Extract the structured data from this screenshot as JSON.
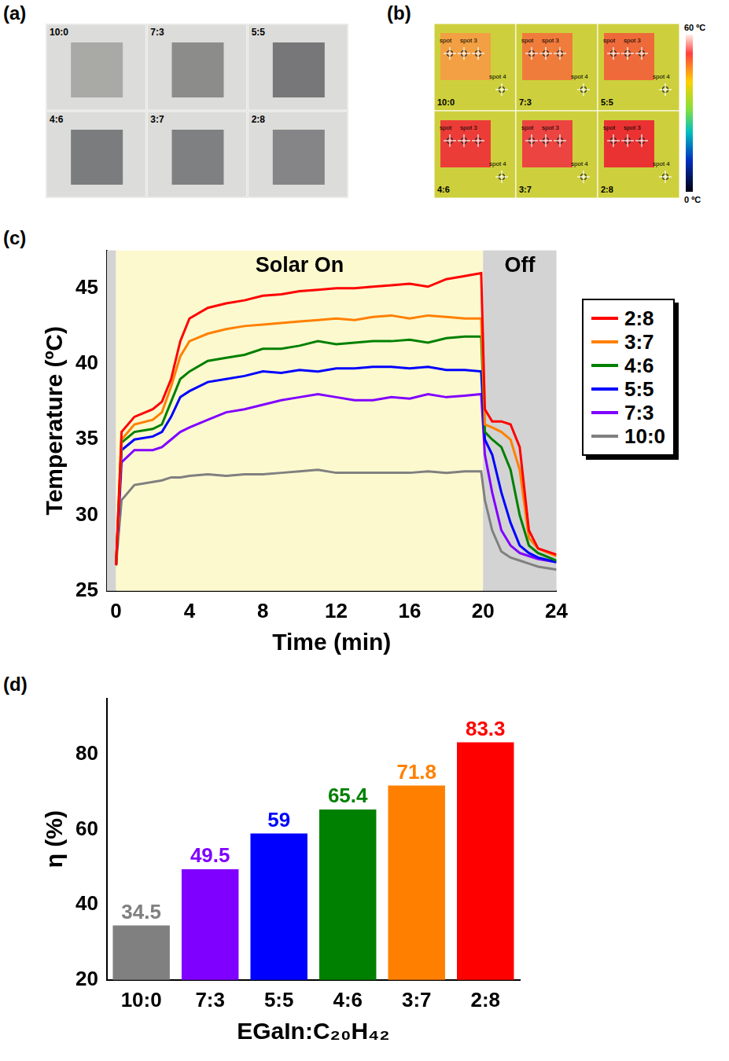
{
  "photo_panel": {
    "letter": "(a)",
    "samples": [
      "10:0",
      "7:3",
      "5:5",
      "4:6",
      "3:7",
      "2:8"
    ],
    "colors": [
      "#a9a9a5",
      "#8c8c8a",
      "#777779",
      "#7b7c7e",
      "#7f8082",
      "#858587"
    ]
  },
  "thermal_panel": {
    "letter": "(b)",
    "samples": [
      "10:0",
      "7:3",
      "5:5",
      "4:6",
      "3:7",
      "2:8"
    ],
    "colors": [
      "#f2a043",
      "#f07c3c",
      "#ef6a3a",
      "#ec3c38",
      "#ec4440",
      "#ea3232"
    ],
    "spot_labels": [
      "spot",
      "spot 3",
      "spot 4"
    ],
    "colorbar": {
      "range": [
        0,
        60
      ],
      "ticks": [
        {
          "value": 60,
          "label": "60 ºC"
        },
        {
          "value": 0,
          "label": "0 ºC"
        }
      ]
    }
  },
  "chart_data": [
    {
      "type": "line",
      "letter": "(c)",
      "x_label": "Time (min)",
      "y_label": "Temperature (ºC)",
      "x": [
        0,
        0.3,
        1,
        2,
        2.5,
        3,
        3.5,
        4,
        5,
        6,
        7,
        8,
        9,
        10,
        11,
        12,
        13,
        14,
        15,
        16,
        17,
        18,
        19,
        19.9,
        20.1,
        20.5,
        21,
        21.5,
        22,
        22.5,
        23,
        24
      ],
      "series": [
        {
          "name": "2:8",
          "color": "#ff0000",
          "values": [
            26.7,
            35.5,
            36.5,
            37,
            37.5,
            39,
            41.5,
            43,
            43.7,
            44,
            44.2,
            44.5,
            44.6,
            44.8,
            44.9,
            45,
            45,
            45.1,
            45.2,
            45.3,
            45.1,
            45.6,
            45.8,
            46,
            37,
            36.2,
            36.2,
            36,
            34.5,
            29,
            27.8,
            27.4
          ]
        },
        {
          "name": "3:7",
          "color": "#ff8000",
          "values": [
            26.7,
            35,
            36,
            36.3,
            36.8,
            38.5,
            40.5,
            41.5,
            42,
            42.3,
            42.5,
            42.6,
            42.7,
            42.8,
            42.9,
            43,
            42.9,
            43.1,
            43.2,
            43,
            43.2,
            43.1,
            43,
            43,
            36,
            35.8,
            35.5,
            35,
            33,
            28.5,
            27.8,
            27.3
          ]
        },
        {
          "name": "4:6",
          "color": "#008000",
          "values": [
            26.7,
            34.8,
            35.5,
            35.7,
            36,
            37.5,
            39,
            39.5,
            40.2,
            40.4,
            40.6,
            41,
            41,
            41.2,
            41.5,
            41.3,
            41.4,
            41.5,
            41.5,
            41.6,
            41.4,
            41.7,
            41.8,
            41.8,
            35.5,
            35,
            34.5,
            33,
            30,
            28,
            27.5,
            27
          ]
        },
        {
          "name": "5:5",
          "color": "#0000ff",
          "values": [
            26.7,
            34.3,
            35,
            35.2,
            35.5,
            36.5,
            37.8,
            38.2,
            38.8,
            39,
            39.2,
            39.5,
            39.4,
            39.6,
            39.5,
            39.7,
            39.7,
            39.8,
            39.8,
            39.7,
            39.8,
            39.6,
            39.6,
            39.5,
            35,
            34,
            31.5,
            29.5,
            28,
            27.5,
            27.2,
            26.9
          ]
        },
        {
          "name": "7:3",
          "color": "#8000ff",
          "values": [
            26.7,
            33.5,
            34.3,
            34.3,
            34.5,
            35,
            35.5,
            35.8,
            36.3,
            36.8,
            37,
            37.3,
            37.6,
            37.8,
            38,
            37.8,
            37.6,
            37.6,
            37.8,
            37.7,
            38,
            37.8,
            37.9,
            38,
            34,
            31.5,
            29,
            28,
            27.5,
            27.3,
            27.1,
            26.9
          ]
        },
        {
          "name": "10:0",
          "color": "#808080",
          "values": [
            26.7,
            31,
            32,
            32.2,
            32.3,
            32.5,
            32.5,
            32.6,
            32.7,
            32.6,
            32.7,
            32.7,
            32.8,
            32.9,
            33,
            32.8,
            32.8,
            32.8,
            32.8,
            32.8,
            32.9,
            32.8,
            32.9,
            32.9,
            31,
            29,
            27.6,
            27.2,
            27,
            26.8,
            26.6,
            26.4
          ]
        }
      ],
      "xlim": [
        -0.5,
        24
      ],
      "xticks": [
        0,
        4,
        8,
        12,
        16,
        20,
        24
      ],
      "ylim": [
        25,
        47.5
      ],
      "yticks": [
        25,
        30,
        35,
        40,
        45
      ],
      "regions": [
        {
          "start": -0.5,
          "end": 0,
          "color": "#d3d3d3"
        },
        {
          "label": "Solar On",
          "start": 0,
          "end": 20,
          "color": "#fdf9cf"
        },
        {
          "label": "Off",
          "start": 20,
          "end": 24,
          "color": "#d3d3d3"
        }
      ],
      "legend": "right",
      "grid": false
    },
    {
      "type": "bar",
      "letter": "(d)",
      "x_label": "EGaIn:C₂₀H₄₂",
      "y_label": "η (%)",
      "categories": [
        "10:0",
        "7:3",
        "5:5",
        "4:6",
        "3:7",
        "2:8"
      ],
      "values": [
        34.5,
        49.5,
        59,
        65.4,
        71.8,
        83.3
      ],
      "colors": [
        "#808080",
        "#8000ff",
        "#0000ff",
        "#008000",
        "#ff8000",
        "#ff0000"
      ],
      "ylim": [
        20,
        95
      ],
      "yticks": [
        20,
        40,
        60,
        80
      ],
      "data_labels": true,
      "grid": false
    }
  ]
}
